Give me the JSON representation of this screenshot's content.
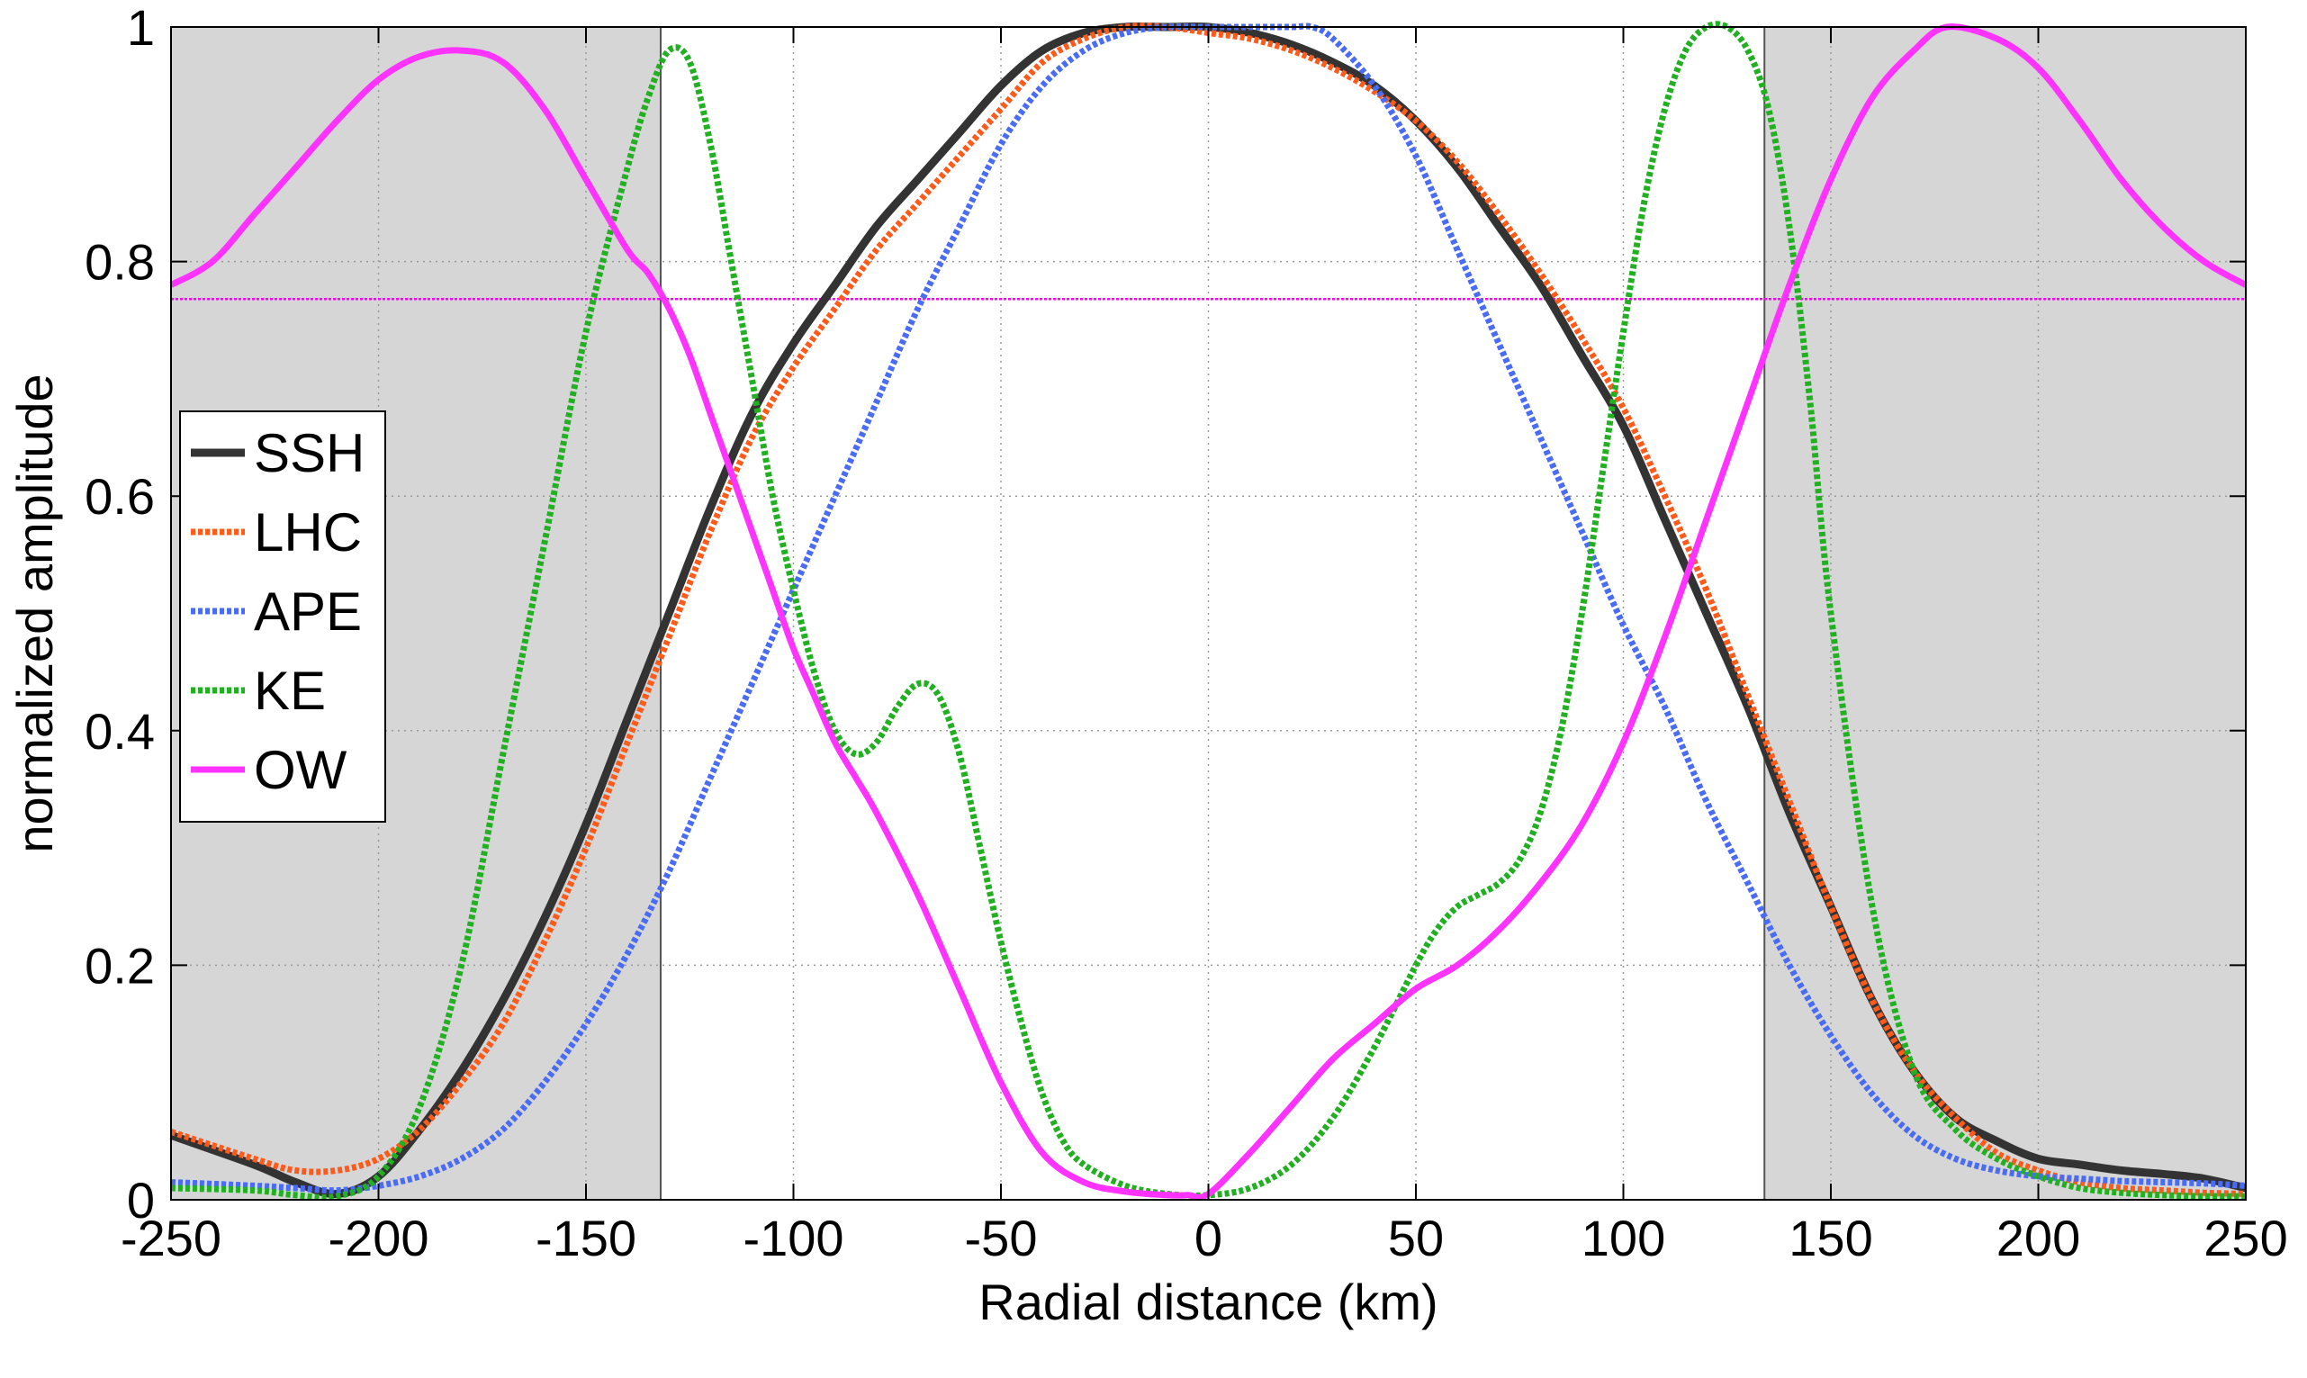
{
  "chart_data": {
    "type": "line",
    "title": "",
    "xlabel": "Radial distance (km)",
    "ylabel": "normalized amplitude",
    "xlim": [
      -250,
      250
    ],
    "ylim": [
      0,
      1
    ],
    "xticks": [
      -250,
      -200,
      -150,
      -100,
      -50,
      0,
      50,
      100,
      150,
      200,
      250
    ],
    "yticks": [
      0,
      0.2,
      0.4,
      0.6,
      0.8,
      1
    ],
    "xtick_labels": [
      "-250",
      "-200",
      "-150",
      "-100",
      "-50",
      "0",
      "50",
      "100",
      "150",
      "200",
      "250"
    ],
    "ytick_labels": [
      "0",
      "0.2",
      "0.4",
      "0.6",
      "0.8",
      "1"
    ],
    "grid": true,
    "legend_position": "middle-left",
    "shaded_regions": [
      {
        "x0": -250,
        "x1": -132,
        "color": "#d6d6d6"
      },
      {
        "x0": 134,
        "x1": 250,
        "color": "#d6d6d6"
      }
    ],
    "reference_lines": [
      {
        "orientation": "horizontal",
        "y": 0.768,
        "color": "#ff00ff",
        "style": "dotted"
      }
    ],
    "series": [
      {
        "name": "SSH",
        "color": "#333333",
        "style": "solid",
        "x": [
          -250,
          -230,
          -220,
          -210,
          -200,
          -190,
          -180,
          -170,
          -160,
          -150,
          -140,
          -130,
          -120,
          -110,
          -100,
          -90,
          -80,
          -70,
          -60,
          -50,
          -40,
          -30,
          -20,
          -10,
          0,
          10,
          20,
          30,
          40,
          50,
          60,
          70,
          80,
          90,
          100,
          110,
          120,
          130,
          140,
          150,
          160,
          170,
          180,
          190,
          200,
          210,
          220,
          230,
          240,
          250
        ],
        "values": [
          0.055,
          0.03,
          0.015,
          0.005,
          0.02,
          0.06,
          0.11,
          0.17,
          0.24,
          0.32,
          0.41,
          0.5,
          0.59,
          0.67,
          0.73,
          0.78,
          0.83,
          0.87,
          0.91,
          0.95,
          0.98,
          0.995,
          1.0,
          1.0,
          1.0,
          0.995,
          0.985,
          0.97,
          0.95,
          0.92,
          0.88,
          0.83,
          0.78,
          0.72,
          0.66,
          0.58,
          0.5,
          0.42,
          0.33,
          0.25,
          0.17,
          0.11,
          0.07,
          0.05,
          0.035,
          0.03,
          0.025,
          0.022,
          0.018,
          0.01
        ]
      },
      {
        "name": "LHC",
        "color": "#ff5a1a",
        "style": "dotted",
        "x": [
          -250,
          -230,
          -220,
          -210,
          -200,
          -190,
          -180,
          -170,
          -160,
          -150,
          -140,
          -130,
          -120,
          -110,
          -100,
          -90,
          -80,
          -70,
          -60,
          -50,
          -40,
          -30,
          -20,
          -10,
          0,
          10,
          20,
          30,
          40,
          50,
          60,
          70,
          80,
          90,
          100,
          110,
          120,
          130,
          140,
          150,
          160,
          170,
          180,
          190,
          200,
          210,
          220,
          230,
          240,
          250
        ],
        "values": [
          0.058,
          0.035,
          0.025,
          0.025,
          0.035,
          0.06,
          0.1,
          0.15,
          0.22,
          0.3,
          0.39,
          0.48,
          0.57,
          0.65,
          0.71,
          0.76,
          0.81,
          0.85,
          0.89,
          0.93,
          0.97,
          0.99,
          1.0,
          1.0,
          0.995,
          0.99,
          0.98,
          0.965,
          0.945,
          0.92,
          0.885,
          0.84,
          0.79,
          0.735,
          0.675,
          0.6,
          0.52,
          0.43,
          0.34,
          0.25,
          0.17,
          0.11,
          0.07,
          0.04,
          0.025,
          0.015,
          0.01,
          0.008,
          0.006,
          0.005
        ]
      },
      {
        "name": "APE",
        "color": "#4a6cf5",
        "style": "dotted",
        "x": [
          -250,
          -230,
          -220,
          -210,
          -200,
          -190,
          -180,
          -170,
          -160,
          -150,
          -140,
          -130,
          -120,
          -110,
          -100,
          -90,
          -80,
          -70,
          -60,
          -50,
          -40,
          -30,
          -20,
          -10,
          0,
          10,
          20,
          25,
          30,
          40,
          50,
          60,
          70,
          80,
          90,
          100,
          110,
          120,
          130,
          140,
          150,
          160,
          170,
          180,
          190,
          200,
          210,
          220,
          230,
          240,
          250
        ],
        "values": [
          0.015,
          0.012,
          0.01,
          0.008,
          0.012,
          0.02,
          0.035,
          0.06,
          0.1,
          0.15,
          0.21,
          0.28,
          0.36,
          0.44,
          0.52,
          0.6,
          0.68,
          0.76,
          0.83,
          0.9,
          0.95,
          0.98,
          0.995,
          1.0,
          1.0,
          1.0,
          1.0,
          1.0,
          0.99,
          0.95,
          0.89,
          0.81,
          0.73,
          0.65,
          0.57,
          0.49,
          0.42,
          0.34,
          0.27,
          0.2,
          0.14,
          0.09,
          0.055,
          0.035,
          0.025,
          0.02,
          0.018,
          0.016,
          0.015,
          0.014,
          0.012
        ]
      },
      {
        "name": "KE",
        "color": "#22b022",
        "style": "dotted",
        "x": [
          -250,
          -230,
          -220,
          -210,
          -200,
          -190,
          -180,
          -170,
          -160,
          -150,
          -140,
          -135,
          -130,
          -125,
          -120,
          -115,
          -110,
          -105,
          -100,
          -95,
          -90,
          -85,
          -80,
          -75,
          -70,
          -65,
          -60,
          -55,
          -50,
          -45,
          -40,
          -35,
          -30,
          -20,
          -10,
          0,
          10,
          20,
          30,
          40,
          50,
          55,
          60,
          65,
          70,
          75,
          80,
          85,
          90,
          95,
          100,
          105,
          110,
          115,
          120,
          125,
          130,
          135,
          140,
          145,
          150,
          160,
          170,
          180,
          190,
          200,
          210,
          220,
          230,
          240,
          250
        ],
        "values": [
          0.01,
          0.008,
          0.004,
          0.003,
          0.02,
          0.08,
          0.2,
          0.38,
          0.56,
          0.74,
          0.88,
          0.94,
          0.98,
          0.97,
          0.9,
          0.8,
          0.7,
          0.6,
          0.52,
          0.45,
          0.4,
          0.38,
          0.39,
          0.42,
          0.44,
          0.43,
          0.38,
          0.3,
          0.22,
          0.15,
          0.09,
          0.05,
          0.03,
          0.012,
          0.005,
          0.004,
          0.01,
          0.03,
          0.07,
          0.13,
          0.2,
          0.23,
          0.25,
          0.26,
          0.27,
          0.29,
          0.33,
          0.4,
          0.5,
          0.62,
          0.74,
          0.85,
          0.93,
          0.98,
          1.0,
          1.0,
          0.98,
          0.93,
          0.83,
          0.68,
          0.5,
          0.25,
          0.11,
          0.06,
          0.035,
          0.02,
          0.01,
          0.006,
          0.004,
          0.003,
          0.003
        ]
      },
      {
        "name": "OW",
        "color": "#ff33ff",
        "style": "solid",
        "x": [
          -250,
          -240,
          -230,
          -220,
          -210,
          -200,
          -190,
          -180,
          -170,
          -160,
          -150,
          -140,
          -135,
          -130,
          -125,
          -120,
          -115,
          -110,
          -105,
          -100,
          -95,
          -90,
          -85,
          -80,
          -70,
          -60,
          -50,
          -40,
          -30,
          -20,
          -10,
          -5,
          0,
          10,
          20,
          30,
          40,
          50,
          60,
          70,
          80,
          90,
          100,
          110,
          120,
          130,
          140,
          150,
          160,
          170,
          178,
          190,
          200,
          210,
          220,
          230,
          240,
          250
        ],
        "values": [
          0.78,
          0.8,
          0.84,
          0.88,
          0.92,
          0.955,
          0.975,
          0.98,
          0.97,
          0.93,
          0.87,
          0.81,
          0.79,
          0.76,
          0.72,
          0.67,
          0.62,
          0.57,
          0.52,
          0.47,
          0.43,
          0.39,
          0.36,
          0.33,
          0.26,
          0.18,
          0.1,
          0.04,
          0.015,
          0.007,
          0.004,
          0.004,
          0.005,
          0.04,
          0.08,
          0.12,
          0.15,
          0.18,
          0.2,
          0.23,
          0.27,
          0.32,
          0.39,
          0.48,
          0.58,
          0.68,
          0.78,
          0.87,
          0.94,
          0.98,
          1.0,
          0.99,
          0.965,
          0.92,
          0.87,
          0.83,
          0.8,
          0.78
        ]
      }
    ]
  }
}
